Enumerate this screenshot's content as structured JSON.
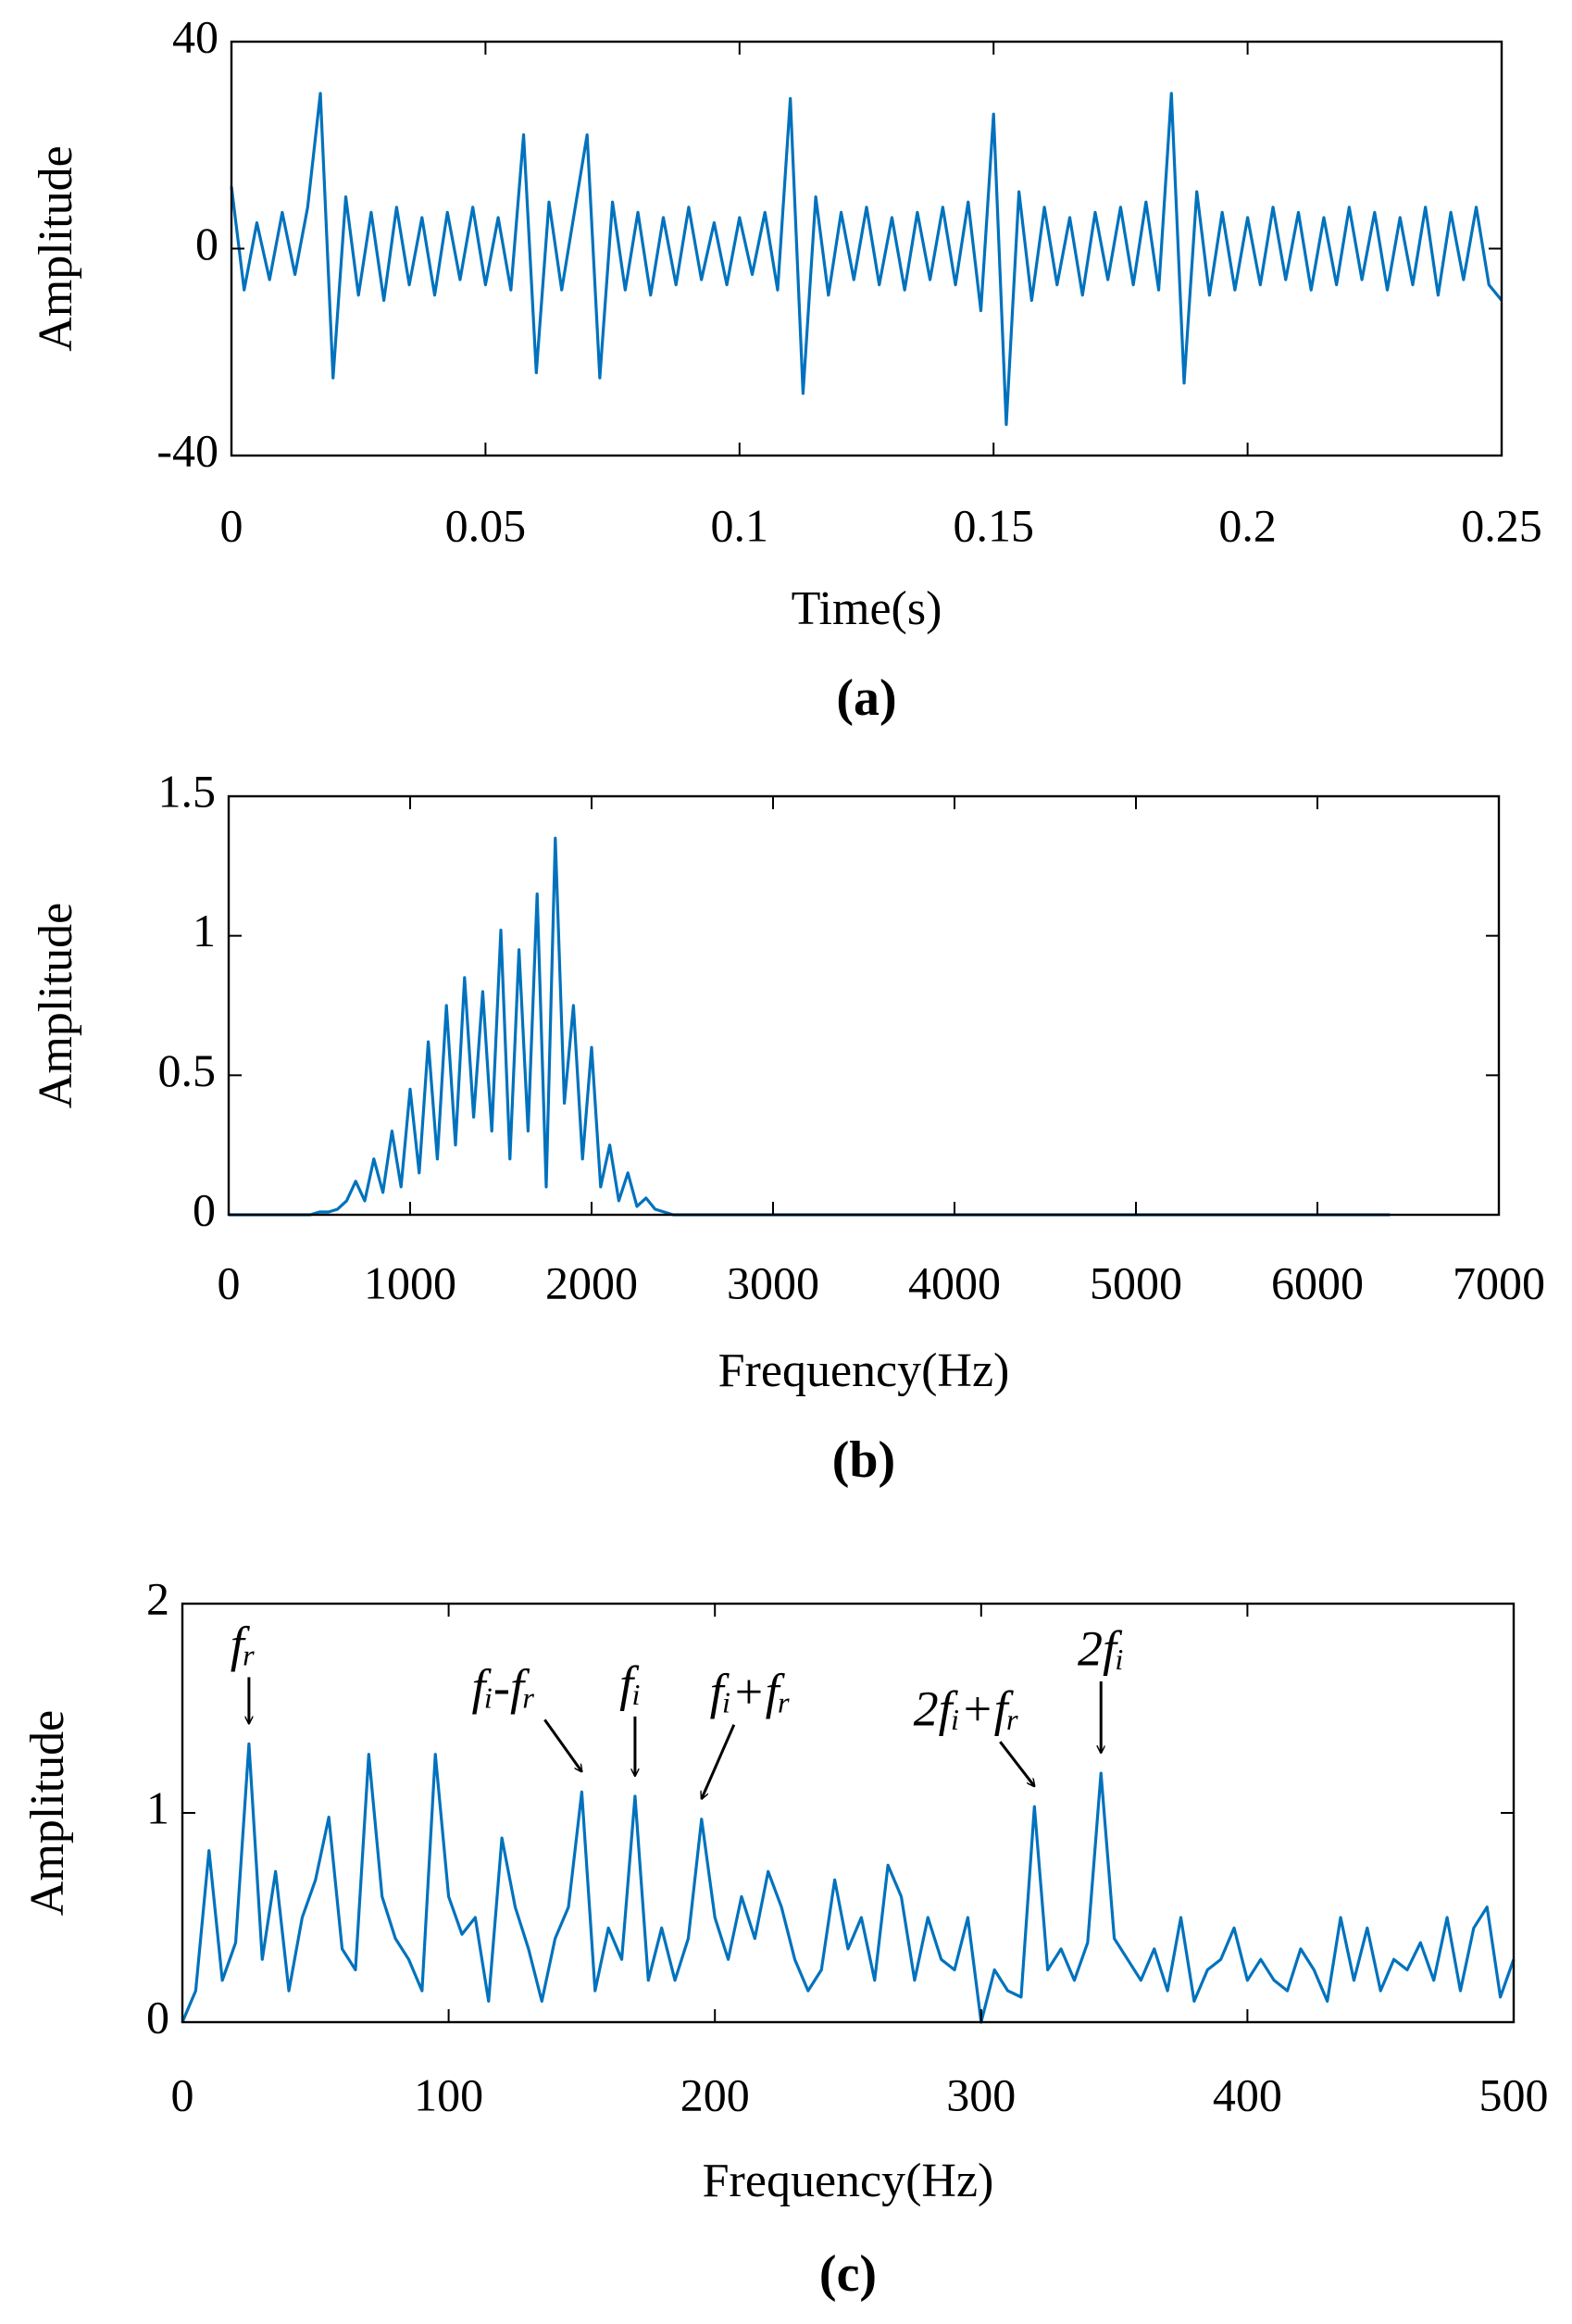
{
  "chart_data": [
    {
      "type": "line",
      "label": "(a)",
      "xlabel": "Time(s)",
      "ylabel": "Amplitude",
      "color": "#0072bd",
      "xlim": [
        0,
        0.25
      ],
      "ylim": [
        -40,
        40
      ],
      "xticks": [
        0,
        0.05,
        0.1,
        0.15,
        0.2,
        0.25
      ],
      "yticks": [
        -40,
        0,
        40
      ],
      "x": [
        0,
        0.0025,
        0.005,
        0.0075,
        0.01,
        0.0125,
        0.015,
        0.0175,
        0.02,
        0.0225,
        0.025,
        0.0275,
        0.03,
        0.0325,
        0.035,
        0.0375,
        0.04,
        0.0425,
        0.045,
        0.0475,
        0.05,
        0.0525,
        0.055,
        0.0575,
        0.06,
        0.0625,
        0.065,
        0.0675,
        0.07,
        0.0725,
        0.075,
        0.0775,
        0.08,
        0.0825,
        0.085,
        0.0875,
        0.09,
        0.0925,
        0.095,
        0.0975,
        0.1,
        0.1025,
        0.105,
        0.1075,
        0.11,
        0.1125,
        0.115,
        0.1175,
        0.12,
        0.1225,
        0.125,
        0.1275,
        0.13,
        0.1325,
        0.135,
        0.1375,
        0.14,
        0.1425,
        0.145,
        0.1475,
        0.15,
        0.1525,
        0.155,
        0.1575,
        0.16,
        0.1625,
        0.165,
        0.1675,
        0.17,
        0.1725,
        0.175,
        0.1775,
        0.18,
        0.1825,
        0.185,
        0.1875,
        0.19,
        0.1925,
        0.195,
        0.1975,
        0.2,
        0.2025,
        0.205,
        0.2075,
        0.21,
        0.2125,
        0.215,
        0.2175,
        0.22,
        0.2225,
        0.225,
        0.2275,
        0.23,
        0.2325,
        0.235,
        0.2375,
        0.24,
        0.2425,
        0.245,
        0.2475,
        0.25
      ],
      "values": [
        12,
        -8,
        5,
        -6,
        7,
        -5,
        8,
        30,
        -25,
        10,
        -9,
        7,
        -10,
        8,
        -7,
        6,
        -9,
        7,
        -6,
        8,
        -7,
        6,
        -8,
        22,
        -24,
        9,
        -8,
        7,
        22,
        -25,
        9,
        -8,
        7,
        -9,
        6,
        -7,
        8,
        -6,
        5,
        -7,
        6,
        -5,
        7,
        -8,
        29,
        -28,
        10,
        -9,
        7,
        -6,
        8,
        -7,
        6,
        -8,
        7,
        -6,
        8,
        -7,
        9,
        -12,
        26,
        -34,
        11,
        -10,
        8,
        -7,
        6,
        -9,
        7,
        -6,
        8,
        -7,
        9,
        -8,
        30,
        -26,
        11,
        -9,
        7,
        -8,
        6,
        -7,
        8,
        -6,
        7,
        -8,
        6,
        -7,
        8,
        -6,
        7,
        -8,
        6,
        -7,
        8,
        -9,
        7,
        -6,
        8,
        -7,
        -10
      ]
    },
    {
      "type": "line",
      "label": "(b)",
      "xlabel": "Frequency(Hz)",
      "ylabel": "Amplitude",
      "color": "#0072bd",
      "xlim": [
        0,
        7000
      ],
      "ylim": [
        0,
        1.5
      ],
      "xticks": [
        0,
        1000,
        2000,
        3000,
        4000,
        5000,
        6000,
        7000
      ],
      "yticks": [
        0,
        0.5,
        1,
        1.5
      ],
      "x": [
        0,
        50,
        100,
        150,
        200,
        250,
        300,
        350,
        400,
        450,
        500,
        550,
        600,
        650,
        700,
        750,
        800,
        850,
        900,
        950,
        1000,
        1050,
        1100,
        1150,
        1200,
        1250,
        1300,
        1350,
        1400,
        1450,
        1500,
        1550,
        1600,
        1650,
        1700,
        1750,
        1800,
        1850,
        1900,
        1950,
        2000,
        2050,
        2100,
        2150,
        2200,
        2250,
        2300,
        2350,
        2400,
        2450,
        2500,
        6400
      ],
      "values": [
        0,
        0,
        0,
        0,
        0,
        0,
        0,
        0,
        0,
        0,
        0.01,
        0.01,
        0.02,
        0.05,
        0.12,
        0.05,
        0.2,
        0.08,
        0.3,
        0.1,
        0.45,
        0.15,
        0.62,
        0.2,
        0.75,
        0.25,
        0.85,
        0.35,
        0.8,
        0.3,
        1.02,
        0.2,
        0.95,
        0.3,
        1.15,
        0.1,
        1.35,
        0.4,
        0.75,
        0.2,
        0.6,
        0.1,
        0.25,
        0.05,
        0.15,
        0.03,
        0.06,
        0.02,
        0.01,
        0,
        0,
        0
      ]
    },
    {
      "type": "line",
      "label": "(c)",
      "xlabel": "Frequency(Hz)",
      "ylabel": "Amplitude",
      "color": "#0072bd",
      "xlim": [
        0,
        500
      ],
      "ylim": [
        0,
        2
      ],
      "xticks": [
        0,
        100,
        200,
        300,
        400,
        500
      ],
      "yticks": [
        0,
        1,
        2
      ],
      "x": [
        0,
        5,
        10,
        15,
        20,
        25,
        30,
        35,
        40,
        45,
        50,
        55,
        60,
        65,
        70,
        75,
        80,
        85,
        90,
        95,
        100,
        105,
        110,
        115,
        120,
        125,
        130,
        135,
        140,
        145,
        150,
        155,
        160,
        165,
        170,
        175,
        180,
        185,
        190,
        195,
        200,
        205,
        210,
        215,
        220,
        225,
        230,
        235,
        240,
        245,
        250,
        255,
        260,
        265,
        270,
        275,
        280,
        285,
        290,
        295,
        300,
        305,
        310,
        315,
        320,
        325,
        330,
        335,
        340,
        345,
        350,
        355,
        360,
        365,
        370,
        375,
        380,
        385,
        390,
        395,
        400,
        405,
        410,
        415,
        420,
        425,
        430,
        435,
        440,
        445,
        450,
        455,
        460,
        465,
        470,
        475,
        480,
        485,
        490,
        495,
        500
      ],
      "values": [
        0,
        0.15,
        0.82,
        0.2,
        0.38,
        1.33,
        0.3,
        0.72,
        0.15,
        0.5,
        0.68,
        0.98,
        0.35,
        0.25,
        1.28,
        0.6,
        0.4,
        0.3,
        0.15,
        1.28,
        0.6,
        0.42,
        0.5,
        0.1,
        0.88,
        0.55,
        0.35,
        0.1,
        0.4,
        0.55,
        1.1,
        0.15,
        0.45,
        0.3,
        1.08,
        0.2,
        0.45,
        0.2,
        0.4,
        0.97,
        0.5,
        0.3,
        0.6,
        0.4,
        0.72,
        0.55,
        0.3,
        0.15,
        0.25,
        0.68,
        0.35,
        0.5,
        0.2,
        0.75,
        0.6,
        0.2,
        0.5,
        0.3,
        0.25,
        0.5,
        0,
        0.25,
        0.15,
        0.12,
        1.03,
        0.25,
        0.35,
        0.2,
        0.38,
        1.19,
        0.4,
        0.3,
        0.2,
        0.35,
        0.15,
        0.5,
        0.1,
        0.25,
        0.3,
        0.45,
        0.2,
        0.3,
        0.2,
        0.15,
        0.35,
        0.25,
        0.1,
        0.5,
        0.2,
        0.45,
        0.15,
        0.3,
        0.25,
        0.38,
        0.2,
        0.5,
        0.15,
        0.45,
        0.55,
        0.12,
        0.3
      ],
      "annotations": [
        {
          "text": "fᵣ",
          "x": 25,
          "y": 1.33
        },
        {
          "text": "fᵢ-fᵣ",
          "x": 150,
          "y": 1.1
        },
        {
          "text": "fᵢ",
          "x": 170,
          "y": 1.08
        },
        {
          "text": "fᵢ+fᵣ",
          "x": 195,
          "y": 0.97
        },
        {
          "text": "2fᵢ+fᵣ",
          "x": 320,
          "y": 1.03
        },
        {
          "text": "2fᵢ",
          "x": 345,
          "y": 1.19
        }
      ]
    }
  ]
}
